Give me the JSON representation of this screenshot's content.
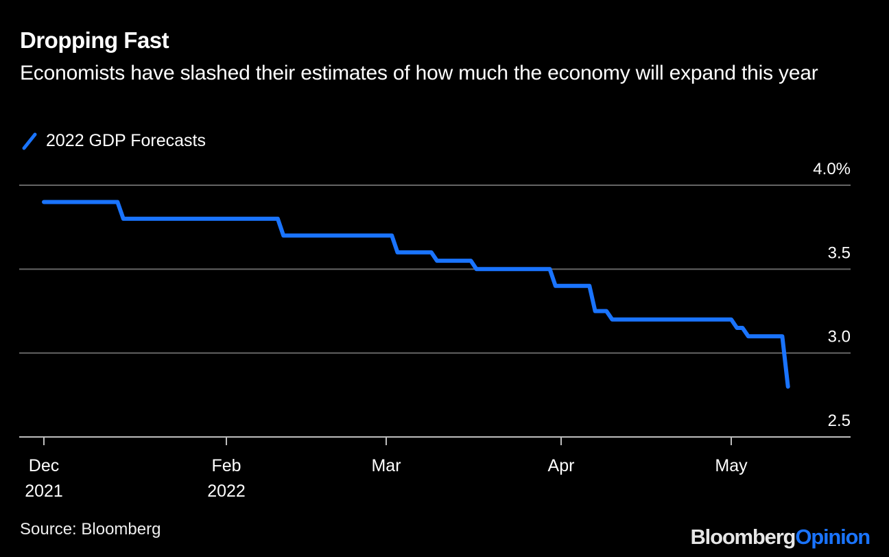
{
  "title": "Dropping Fast",
  "subtitle": "Economists have slashed their estimates of how much the economy will expand this year",
  "source": "Source: Bloomberg",
  "brand": {
    "part1": "Bloomberg",
    "part2": "Opinion"
  },
  "colors": {
    "background": "#000000",
    "line": "#1a74ff",
    "grid": "#666666",
    "axis": "#bfbfbf",
    "text": "#ffffff"
  },
  "chart_data": {
    "type": "line",
    "title": "Dropping Fast",
    "subtitle": "Economists have slashed their estimates of how much the economy will expand this year",
    "xlabel": "",
    "ylabel": "",
    "ylim": [
      2.5,
      4.0
    ],
    "yticks": [
      {
        "value": 4.0,
        "label": "4.0%"
      },
      {
        "value": 3.5,
        "label": "3.5"
      },
      {
        "value": 3.0,
        "label": "3.0"
      },
      {
        "value": 2.5,
        "label": "2.5"
      }
    ],
    "xticks": [
      {
        "date": "2021-12-01",
        "label": [
          "Dec",
          "2021"
        ]
      },
      {
        "date": "2022-02-01",
        "label": [
          "Feb",
          "2022"
        ]
      },
      {
        "date": "2022-03-01",
        "label": [
          "Mar",
          ""
        ]
      },
      {
        "date": "2022-04-01",
        "label": [
          "Apr",
          ""
        ]
      },
      {
        "date": "2022-05-01",
        "label": [
          "May",
          ""
        ]
      }
    ],
    "grid": true,
    "legend_position": "top-left",
    "series": [
      {
        "name": "2022 GDP Forecasts",
        "points": [
          [
            "2021-12-01",
            3.9
          ],
          [
            "2021-12-26",
            3.9
          ],
          [
            "2021-12-28",
            3.8
          ],
          [
            "2022-02-10",
            3.8
          ],
          [
            "2022-02-11",
            3.7
          ],
          [
            "2022-03-02",
            3.7
          ],
          [
            "2022-03-03",
            3.6
          ],
          [
            "2022-03-09",
            3.6
          ],
          [
            "2022-03-10",
            3.55
          ],
          [
            "2022-03-16",
            3.55
          ],
          [
            "2022-03-17",
            3.5
          ],
          [
            "2022-03-30",
            3.5
          ],
          [
            "2022-03-31",
            3.4
          ],
          [
            "2022-04-06",
            3.4
          ],
          [
            "2022-04-07",
            3.25
          ],
          [
            "2022-04-09",
            3.25
          ],
          [
            "2022-04-10",
            3.2
          ],
          [
            "2022-05-01",
            3.2
          ],
          [
            "2022-05-02",
            3.15
          ],
          [
            "2022-05-03",
            3.15
          ],
          [
            "2022-05-04",
            3.1
          ],
          [
            "2022-05-10",
            3.1
          ],
          [
            "2022-05-11",
            2.8
          ]
        ]
      }
    ]
  }
}
